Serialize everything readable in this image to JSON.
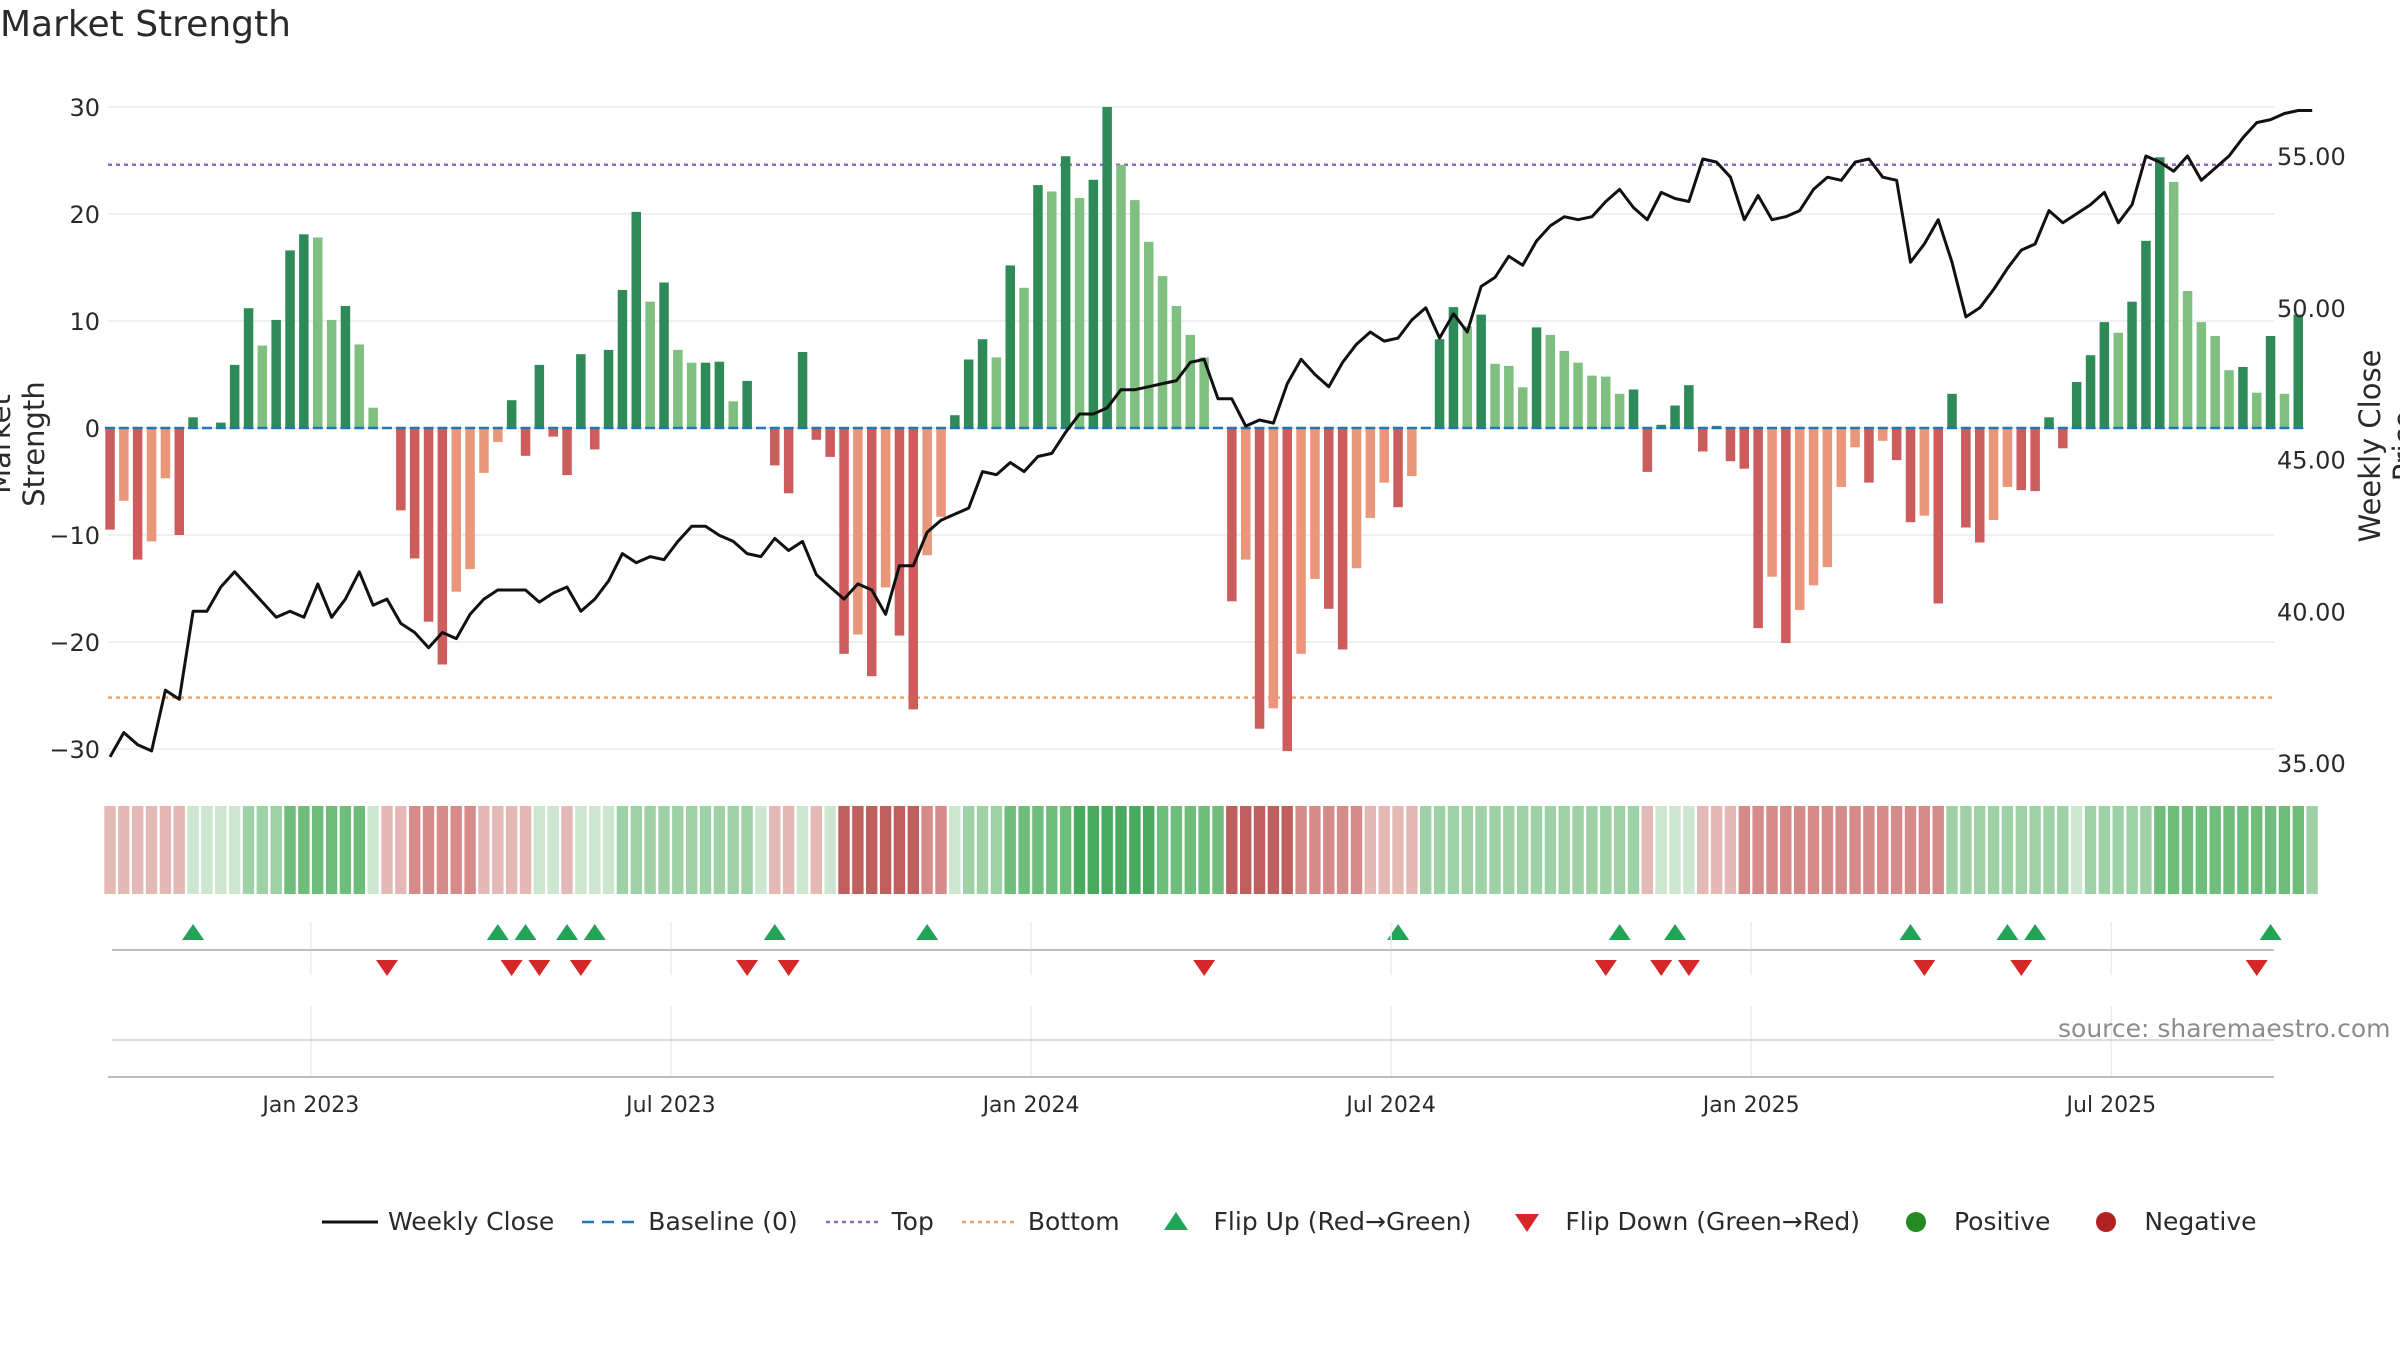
{
  "title": "Market Strength",
  "source": "source: sharemaestro.com",
  "colors": {
    "strong_green": "#2e8b57",
    "light_green": "#7fbf7f",
    "strong_red": "#cd5c5c",
    "light_red": "#e9967a",
    "top_line": "#9467bd",
    "bottom_line": "#f4a460",
    "baseline": "#1f77b4",
    "price_line": "#111111",
    "flip_up": "#22a355",
    "flip_down": "#d62728",
    "positive": "#228b22",
    "negative": "#b22222"
  },
  "chart_data": {
    "type": "bar",
    "title": "Market Strength",
    "ylabel_left": "Market Strength",
    "ylabel_right": "Weekly Close Price",
    "ylim_left": [
      -33,
      33
    ],
    "ylim_right": [
      34.2,
      57.2
    ],
    "yticks_left": [
      "30",
      "20",
      "10",
      "0",
      "−10",
      "−20",
      "−30"
    ],
    "yticks_left_values": [
      30,
      20,
      10,
      0,
      -10,
      -20,
      -30
    ],
    "yticks_right": [
      "55.00",
      "50.00",
      "45.00",
      "40.00",
      "35.00"
    ],
    "yticks_right_values": [
      55,
      50,
      45,
      40,
      35
    ],
    "x_tick_labels": [
      "Jan 2023",
      "Jul 2023",
      "Jan 2024",
      "Jul 2024",
      "Jan 2025",
      "Jul 2025"
    ],
    "x_tick_weeks": [
      14.5,
      40.5,
      66.5,
      92.5,
      118.5,
      144.5
    ],
    "top_threshold": 24.6,
    "bottom_threshold": -25.2,
    "strength": [
      -9.5,
      -6.8,
      -12.3,
      -10.6,
      -4.7,
      -10,
      1,
      0,
      0.5,
      5.9,
      11.2,
      7.7,
      10.1,
      16.6,
      18.1,
      17.8,
      10.1,
      11.4,
      7.8,
      1.9,
      0,
      -7.7,
      -12.2,
      -18.1,
      -22.1,
      -15.3,
      -13.2,
      -4.2,
      -1.3,
      2.6,
      -2.6,
      5.9,
      -0.8,
      -4.4,
      6.9,
      -2,
      7.3,
      12.9,
      20.2,
      11.8,
      13.6,
      7.3,
      6.1,
      6.1,
      6.2,
      2.5,
      4.4,
      0,
      -3.5,
      -6.1,
      7.1,
      -1.1,
      -2.7,
      -21.1,
      -19.3,
      -23.2,
      -14.9,
      -19.4,
      -26.3,
      -11.9,
      -8.3,
      1.2,
      6.4,
      8.3,
      6.6,
      15.2,
      13.1,
      22.7,
      22.1,
      25.4,
      21.5,
      23.2,
      30,
      24.6,
      21.3,
      17.4,
      14.2,
      11.4,
      8.7,
      6.6,
      0,
      -16.2,
      -12.3,
      -28.1,
      -26.2,
      -30.2,
      -21.1,
      -14.1,
      -16.9,
      -20.7,
      -13.1,
      -8.4,
      -5.1,
      -7.4,
      -4.5,
      0,
      8.3,
      11.3,
      9.5,
      10.6,
      6,
      5.8,
      3.8,
      9.4,
      8.7,
      7.2,
      6.1,
      4.9,
      4.8,
      3.2,
      3.6,
      -4.1,
      0.3,
      2.1,
      4,
      -2.2,
      0.2,
      -3.1,
      -3.8,
      -18.7,
      -13.9,
      -20.1,
      -17,
      -14.7,
      -13,
      -5.5,
      -1.8,
      -5.1,
      -1.2,
      -3,
      -8.8,
      -8.2,
      -16.4,
      3.2,
      -9.3,
      -10.7,
      -8.6,
      -5.5,
      -5.8,
      -5.9,
      1,
      -1.9,
      4.3,
      6.8,
      9.9,
      8.9,
      11.8,
      17.5,
      25.3,
      23,
      12.8,
      9.9,
      8.6,
      5.4,
      5.7,
      3.3,
      8.6,
      3.2,
      10.6
    ],
    "close": [
      35.2,
      36.0,
      35.6,
      35.4,
      37.4,
      37.1,
      40.0,
      40.0,
      40.8,
      41.3,
      40.8,
      40.3,
      39.8,
      40.0,
      39.8,
      40.9,
      39.8,
      40.4,
      41.3,
      40.2,
      40.4,
      39.6,
      39.3,
      38.8,
      39.3,
      39.1,
      39.9,
      40.4,
      40.7,
      40.7,
      40.7,
      40.3,
      40.6,
      40.8,
      40.0,
      40.4,
      41.0,
      41.9,
      41.6,
      41.8,
      41.7,
      42.3,
      42.8,
      42.8,
      42.5,
      42.3,
      41.9,
      41.8,
      42.4,
      42.0,
      42.3,
      41.2,
      40.8,
      40.4,
      40.9,
      40.7,
      39.9,
      41.5,
      41.5,
      42.6,
      43.0,
      43.2,
      43.4,
      44.6,
      44.5,
      44.9,
      44.6,
      45.1,
      45.2,
      45.9,
      46.5,
      46.5,
      46.7,
      47.3,
      47.3,
      47.4,
      47.5,
      47.6,
      48.2,
      48.3,
      47.0,
      47.0,
      46.1,
      46.3,
      46.2,
      47.5,
      48.3,
      47.8,
      47.4,
      48.2,
      48.8,
      49.2,
      48.9,
      49.0,
      49.6,
      50.0,
      49.0,
      49.8,
      49.2,
      50.7,
      51.0,
      51.7,
      51.4,
      52.2,
      52.7,
      53.0,
      52.9,
      53.0,
      53.5,
      53.9,
      53.3,
      52.9,
      53.8,
      53.6,
      53.5,
      54.9,
      54.8,
      54.3,
      52.9,
      53.7,
      52.9,
      53.0,
      53.2,
      53.9,
      54.3,
      54.2,
      54.8,
      54.9,
      54.3,
      54.2,
      51.5,
      52.1,
      52.9,
      51.5,
      49.7,
      50.0,
      50.6,
      51.3,
      51.9,
      52.1,
      53.2,
      52.8,
      53.1,
      53.4,
      53.8,
      52.8,
      53.4,
      55.0,
      54.8,
      54.5,
      55.0,
      54.2,
      54.6,
      55.0,
      55.6,
      56.1,
      56.2,
      56.4,
      56.5,
      56.5
    ],
    "regime": [
      "C",
      "C",
      "C",
      "C",
      "C",
      "C",
      "D",
      "D",
      "D",
      "D",
      "E",
      "E",
      "E",
      "F",
      "F",
      "F",
      "F",
      "F",
      "F",
      "D",
      "C",
      "C",
      "B",
      "B",
      "B",
      "B",
      "B",
      "C",
      "C",
      "C",
      "C",
      "D",
      "D",
      "C",
      "D",
      "D",
      "D",
      "E",
      "E",
      "E",
      "E",
      "E",
      "E",
      "E",
      "E",
      "E",
      "E",
      "D",
      "C",
      "C",
      "D",
      "C",
      "D",
      "A",
      "A",
      "A",
      "A",
      "A",
      "A",
      "B",
      "B",
      "D",
      "E",
      "E",
      "E",
      "F",
      "F",
      "F",
      "F",
      "F",
      "G",
      "G",
      "G",
      "G",
      "G",
      "G",
      "F",
      "F",
      "F",
      "F",
      "F",
      "A",
      "A",
      "A",
      "A",
      "A",
      "B",
      "B",
      "B",
      "B",
      "B",
      "C",
      "C",
      "C",
      "C",
      "E",
      "E",
      "E",
      "E",
      "E",
      "E",
      "E",
      "E",
      "E",
      "E",
      "E",
      "E",
      "E",
      "E",
      "E",
      "E",
      "C",
      "D",
      "D",
      "D",
      "C",
      "C",
      "C",
      "B",
      "B",
      "B",
      "B",
      "B",
      "B",
      "B",
      "B",
      "B",
      "B",
      "B",
      "B",
      "B",
      "B",
      "B",
      "E",
      "E",
      "E",
      "E",
      "E",
      "E",
      "E",
      "E",
      "E",
      "D",
      "E",
      "E",
      "E",
      "E",
      "E",
      "F",
      "F",
      "F",
      "F",
      "F",
      "F",
      "F",
      "F",
      "F",
      "F",
      "F",
      "E"
    ],
    "regime_colors": {
      "A": "#c0605e",
      "B": "#d48b8a",
      "C": "#e3b8b5",
      "D": "#cde6d0",
      "E": "#9fd1a7",
      "F": "#6fbd7b",
      "G": "#48aa5e"
    },
    "flip_up_weeks": [
      6,
      28,
      30,
      33,
      35,
      48,
      59,
      93,
      109,
      113,
      130,
      137,
      139,
      156
    ],
    "flip_down_weeks": [
      20,
      29,
      31,
      34,
      46,
      49,
      79,
      108,
      112,
      114,
      131,
      138,
      155
    ],
    "legend": [
      "Weekly Close",
      "Baseline (0)",
      "Top",
      "Bottom",
      "Flip Up (Red→Green)",
      "Flip Down (Green→Red)",
      "Positive",
      "Negative"
    ]
  }
}
